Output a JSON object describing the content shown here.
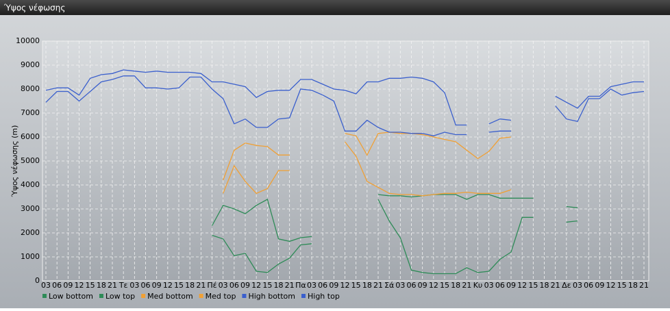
{
  "chart_data": {
    "type": "line",
    "title": "Ύψος νέφωσης",
    "y_label": "Ύψος νέφωσης (m)",
    "categories": [
      "03",
      "06",
      "09",
      "12",
      "15",
      "18",
      "21",
      "Τε",
      "03",
      "06",
      "09",
      "12",
      "15",
      "18",
      "21",
      "Πέ",
      "03",
      "06",
      "09",
      "12",
      "15",
      "18",
      "21",
      "Πα",
      "03",
      "06",
      "09",
      "12",
      "15",
      "18",
      "21",
      "Σά",
      "03",
      "06",
      "09",
      "12",
      "15",
      "18",
      "21",
      "Κυ",
      "03",
      "06",
      "09",
      "12",
      "15",
      "18",
      "21",
      "Δε",
      "03",
      "06",
      "09",
      "12",
      "15",
      "18",
      "21"
    ],
    "ylim": [
      0,
      10000
    ],
    "yticks": [
      0,
      1000,
      2000,
      3000,
      4000,
      5000,
      6000,
      7000,
      8000,
      9000,
      10000
    ],
    "grid": true,
    "series": [
      {
        "name": "Low bottom",
        "color": "#2e8b57",
        "values": [
          null,
          null,
          null,
          null,
          null,
          null,
          null,
          null,
          null,
          null,
          null,
          null,
          null,
          null,
          null,
          1900,
          1750,
          1050,
          1150,
          400,
          350,
          700,
          950,
          1500,
          1550,
          null,
          null,
          null,
          null,
          null,
          3400,
          2500,
          1800,
          450,
          350,
          300,
          300,
          300,
          550,
          350,
          400,
          900,
          1200,
          2650,
          2650,
          null,
          null,
          2450,
          2500,
          null,
          null,
          null,
          null,
          null,
          null
        ]
      },
      {
        "name": "Low top",
        "color": "#2e8b57",
        "values": [
          null,
          null,
          null,
          null,
          null,
          null,
          null,
          null,
          null,
          null,
          null,
          null,
          null,
          null,
          null,
          2300,
          3150,
          3000,
          2800,
          3150,
          3400,
          1750,
          1650,
          1800,
          1850,
          null,
          null,
          null,
          null,
          null,
          3600,
          3550,
          3550,
          3500,
          3550,
          3600,
          3600,
          3600,
          3400,
          3600,
          3600,
          3450,
          3450,
          3450,
          3450,
          null,
          null,
          3100,
          3050,
          null,
          null,
          null,
          null,
          null,
          null
        ]
      },
      {
        "name": "Med bottom",
        "color": "#f0a035",
        "values": [
          null,
          null,
          null,
          null,
          null,
          null,
          null,
          null,
          null,
          null,
          null,
          null,
          null,
          null,
          null,
          null,
          3650,
          4800,
          4150,
          3650,
          3850,
          4600,
          4600,
          null,
          null,
          null,
          null,
          5800,
          5200,
          4150,
          3900,
          3650,
          3600,
          3600,
          3550,
          3600,
          3650,
          3650,
          3700,
          3650,
          3650,
          3650,
          3800,
          null,
          null,
          null,
          null,
          null,
          null,
          null,
          null,
          null,
          null,
          null,
          null
        ]
      },
      {
        "name": "Med top",
        "color": "#f0a035",
        "values": [
          null,
          null,
          null,
          null,
          null,
          null,
          null,
          null,
          null,
          null,
          null,
          null,
          null,
          null,
          null,
          null,
          4200,
          5450,
          5750,
          5650,
          5600,
          5250,
          5250,
          null,
          null,
          null,
          null,
          6150,
          6050,
          5250,
          6150,
          6200,
          6150,
          6150,
          6100,
          6000,
          5900,
          5800,
          5450,
          5100,
          5400,
          5950,
          6000,
          null,
          null,
          null,
          null,
          null,
          null,
          null,
          null,
          null,
          null,
          null,
          null
        ]
      },
      {
        "name": "High bottom",
        "color": "#3a5fcd",
        "values": [
          7450,
          7900,
          7900,
          7500,
          7900,
          8300,
          8400,
          8550,
          8550,
          8050,
          8050,
          8000,
          8050,
          8500,
          8500,
          8000,
          7600,
          6550,
          6750,
          6400,
          6400,
          6750,
          6800,
          8000,
          7950,
          7750,
          7500,
          6250,
          6250,
          6700,
          6400,
          6200,
          6200,
          6150,
          6150,
          6050,
          6200,
          6100,
          6100,
          null,
          6200,
          6250,
          6250,
          null,
          null,
          null,
          7300,
          6750,
          6650,
          7600,
          7600,
          8000,
          7750,
          7850,
          7900
        ]
      },
      {
        "name": "High top",
        "color": "#3a5fcd",
        "values": [
          7950,
          8050,
          8050,
          7750,
          8450,
          8600,
          8650,
          8800,
          8750,
          8700,
          8750,
          8700,
          8700,
          8700,
          8650,
          8300,
          8300,
          8200,
          8100,
          7650,
          7900,
          7950,
          7950,
          8400,
          8400,
          8200,
          8000,
          7950,
          7800,
          8300,
          8300,
          8450,
          8450,
          8500,
          8450,
          8300,
          7850,
          6500,
          6500,
          null,
          6550,
          6750,
          6700,
          null,
          null,
          null,
          7700,
          7450,
          7200,
          7700,
          7700,
          8100,
          8200,
          8300,
          8300
        ]
      }
    ]
  }
}
